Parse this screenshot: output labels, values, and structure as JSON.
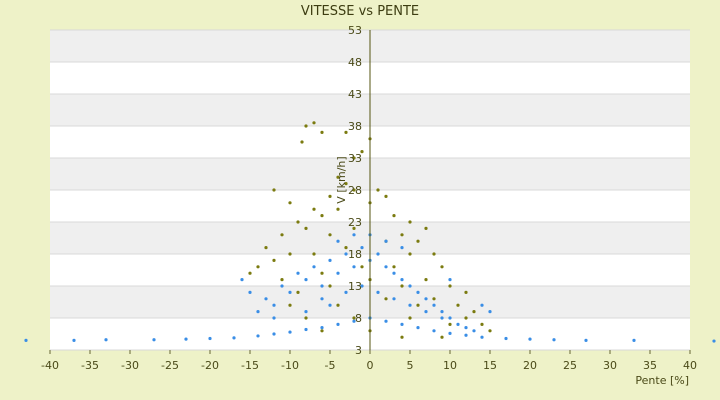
{
  "chart_data": {
    "type": "scatter",
    "title": "VITESSE vs PENTE",
    "xlabel": "Pente [%]",
    "ylabel": "V [km/h]",
    "xlim": [
      -40,
      40
    ],
    "ylim": [
      3,
      53
    ],
    "x_ticks": [
      "-40",
      "-35",
      "-30",
      "-25",
      "-20",
      "-15",
      "-10",
      "-5",
      "0",
      "5",
      "10",
      "15",
      "20",
      "25",
      "30",
      "35",
      "40"
    ],
    "y_ticks": [
      "3",
      "8",
      "13",
      "18",
      "23",
      "28",
      "33",
      "38",
      "43",
      "48",
      "53"
    ],
    "grid": "horizontal alternating bands",
    "series": [
      {
        "color": "#7b7b10",
        "points": [
          [
            -8,
            38
          ],
          [
            -7,
            38.5
          ],
          [
            -6,
            37
          ],
          [
            -3,
            37
          ],
          [
            -8.5,
            35.5
          ],
          [
            0,
            36
          ],
          [
            -1,
            34
          ],
          [
            -2,
            33
          ],
          [
            -4,
            30
          ],
          [
            -3,
            29
          ],
          [
            -12,
            28
          ],
          [
            -10,
            26
          ],
          [
            -5,
            27
          ],
          [
            -2,
            28
          ],
          [
            1,
            28
          ],
          [
            2,
            27
          ],
          [
            -7,
            25
          ],
          [
            -9,
            23
          ],
          [
            -8,
            22
          ],
          [
            -6,
            24
          ],
          [
            -4,
            25
          ],
          [
            0,
            26
          ],
          [
            3,
            24
          ],
          [
            5,
            23
          ],
          [
            7,
            22
          ],
          [
            -11,
            21
          ],
          [
            -13,
            19
          ],
          [
            -10,
            18
          ],
          [
            -5,
            21
          ],
          [
            -2,
            22
          ],
          [
            4,
            21
          ],
          [
            6,
            20
          ],
          [
            8,
            18
          ],
          [
            -12,
            17
          ],
          [
            -14,
            16
          ],
          [
            -7,
            18
          ],
          [
            -3,
            19
          ],
          [
            2,
            20
          ],
          [
            5,
            18
          ],
          [
            9,
            16
          ],
          [
            -15,
            15
          ],
          [
            -11,
            14
          ],
          [
            -6,
            15
          ],
          [
            -1,
            16
          ],
          [
            3,
            16
          ],
          [
            7,
            14
          ],
          [
            10,
            13
          ],
          [
            12,
            12
          ],
          [
            -9,
            12
          ],
          [
            -5,
            13
          ],
          [
            0,
            14
          ],
          [
            4,
            13
          ],
          [
            8,
            11
          ],
          [
            11,
            10
          ],
          [
            13,
            9
          ],
          [
            -10,
            10
          ],
          [
            -4,
            10
          ],
          [
            2,
            11
          ],
          [
            6,
            10
          ],
          [
            12,
            8
          ],
          [
            14,
            7
          ],
          [
            -8,
            8
          ],
          [
            -2,
            8
          ],
          [
            5,
            8
          ],
          [
            10,
            7
          ],
          [
            15,
            6
          ],
          [
            -6,
            6
          ],
          [
            0,
            6
          ],
          [
            4,
            5
          ],
          [
            9,
            5
          ]
        ]
      },
      {
        "color": "#3a8ee6",
        "points": [
          [
            -43,
            4.5
          ],
          [
            -37,
            4.5
          ],
          [
            -33,
            4.6
          ],
          [
            -27,
            4.6
          ],
          [
            -23,
            4.7
          ],
          [
            -20,
            4.8
          ],
          [
            -17,
            4.9
          ],
          [
            -14,
            5.2
          ],
          [
            -12,
            5.5
          ],
          [
            -10,
            5.8
          ],
          [
            -8,
            6.2
          ],
          [
            -6,
            6.5
          ],
          [
            -4,
            7
          ],
          [
            -2,
            7.5
          ],
          [
            0,
            8
          ],
          [
            2,
            7.5
          ],
          [
            4,
            7
          ],
          [
            6,
            6.5
          ],
          [
            8,
            6
          ],
          [
            10,
            5.6
          ],
          [
            12,
            5.3
          ],
          [
            14,
            5
          ],
          [
            17,
            4.8
          ],
          [
            20,
            4.7
          ],
          [
            23,
            4.6
          ],
          [
            27,
            4.5
          ],
          [
            33,
            4.5
          ],
          [
            43,
            4.4
          ],
          [
            -16,
            14
          ],
          [
            -15,
            12
          ],
          [
            -13,
            11
          ],
          [
            -12,
            10
          ],
          [
            -11,
            13
          ],
          [
            -10,
            12
          ],
          [
            -9,
            15
          ],
          [
            -8,
            14
          ],
          [
            -7,
            16
          ],
          [
            -6,
            13
          ],
          [
            -5,
            17
          ],
          [
            -4,
            15
          ],
          [
            -3,
            18
          ],
          [
            -2,
            16
          ],
          [
            -1,
            19
          ],
          [
            0,
            17
          ],
          [
            1,
            18
          ],
          [
            2,
            16
          ],
          [
            3,
            15
          ],
          [
            4,
            14
          ],
          [
            5,
            13
          ],
          [
            6,
            12
          ],
          [
            7,
            11
          ],
          [
            8,
            10
          ],
          [
            9,
            9
          ],
          [
            10,
            8
          ],
          [
            11,
            7
          ],
          [
            12,
            6.5
          ],
          [
            13,
            6
          ],
          [
            -5,
            10
          ],
          [
            -3,
            12
          ],
          [
            -1,
            13
          ],
          [
            1,
            12
          ],
          [
            3,
            11
          ],
          [
            5,
            10
          ],
          [
            7,
            9
          ],
          [
            9,
            8
          ],
          [
            -4,
            20
          ],
          [
            -2,
            21
          ],
          [
            0,
            21
          ],
          [
            2,
            20
          ],
          [
            4,
            19
          ],
          [
            10,
            14
          ],
          [
            14,
            10
          ],
          [
            15,
            9
          ],
          [
            -14,
            9
          ],
          [
            -12,
            8
          ],
          [
            -8,
            9
          ],
          [
            -6,
            11
          ]
        ]
      }
    ]
  }
}
